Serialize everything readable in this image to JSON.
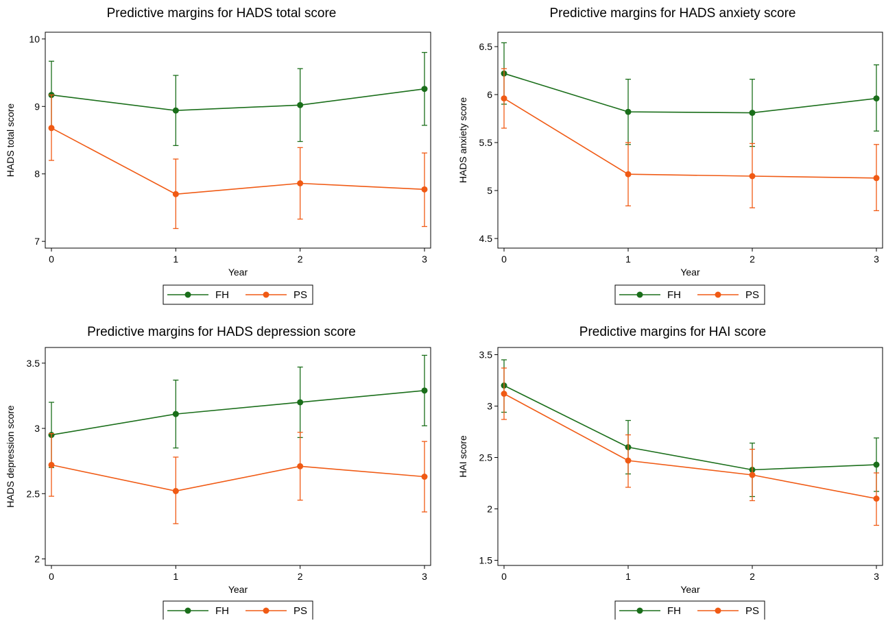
{
  "colors": {
    "FH": "#1a6e1a",
    "PS": "#f05a14"
  },
  "chart_data": [
    {
      "type": "line",
      "title": "Predictive margins for HADS total score",
      "xlabel": "Year",
      "ylabel": "HADS total score",
      "x": [
        0,
        1,
        2,
        3
      ],
      "xticks": [
        "0",
        "1",
        "2",
        "3"
      ],
      "ylim": [
        6.9,
        10.1
      ],
      "yticks": [
        7,
        8,
        9,
        10
      ],
      "yticklabels": [
        "7",
        "8",
        "9",
        "10"
      ],
      "legend": "bottom",
      "grid": false,
      "series": [
        {
          "name": "FH",
          "values": [
            9.17,
            8.94,
            9.02,
            9.26
          ],
          "lower": [
            8.67,
            8.42,
            8.48,
            8.72
          ],
          "upper": [
            9.67,
            9.46,
            9.56,
            9.8
          ]
        },
        {
          "name": "PS",
          "values": [
            8.68,
            7.7,
            7.86,
            7.77
          ],
          "lower": [
            8.2,
            7.19,
            7.33,
            7.22
          ],
          "upper": [
            9.17,
            8.22,
            8.39,
            8.31
          ]
        }
      ]
    },
    {
      "type": "line",
      "title": "Predictive margins for HADS anxiety score",
      "xlabel": "Year",
      "ylabel": "HADS anxiety score",
      "x": [
        0,
        1,
        2,
        3
      ],
      "xticks": [
        "0",
        "1",
        "2",
        "3"
      ],
      "ylim": [
        4.4,
        6.65
      ],
      "yticks": [
        4.5,
        5,
        5.5,
        6,
        6.5
      ],
      "yticklabels": [
        "4.5",
        "5",
        "5.5",
        "6",
        "6.5"
      ],
      "legend": "bottom",
      "grid": false,
      "series": [
        {
          "name": "FH",
          "values": [
            6.22,
            5.82,
            5.81,
            5.96
          ],
          "lower": [
            5.9,
            5.48,
            5.46,
            5.62
          ],
          "upper": [
            6.54,
            6.16,
            6.16,
            6.31
          ]
        },
        {
          "name": "PS",
          "values": [
            5.96,
            5.17,
            5.15,
            5.13
          ],
          "lower": [
            5.65,
            4.84,
            4.82,
            4.79
          ],
          "upper": [
            6.27,
            5.5,
            5.49,
            5.48
          ]
        }
      ]
    },
    {
      "type": "line",
      "title": "Predictive margins for HADS depression score",
      "xlabel": "Year",
      "ylabel": "HADS depression score",
      "x": [
        0,
        1,
        2,
        3
      ],
      "xticks": [
        "0",
        "1",
        "2",
        "3"
      ],
      "ylim": [
        1.95,
        3.62
      ],
      "yticks": [
        2,
        2.5,
        3,
        3.5
      ],
      "yticklabels": [
        "2",
        "2.5",
        "3",
        "3.5"
      ],
      "legend": "bottom",
      "grid": false,
      "series": [
        {
          "name": "FH",
          "values": [
            2.95,
            3.11,
            3.2,
            3.29
          ],
          "lower": [
            2.7,
            2.85,
            2.93,
            3.02
          ],
          "upper": [
            3.2,
            3.37,
            3.47,
            3.56
          ]
        },
        {
          "name": "PS",
          "values": [
            2.72,
            2.52,
            2.71,
            2.63
          ],
          "lower": [
            2.48,
            2.27,
            2.45,
            2.36
          ],
          "upper": [
            2.96,
            2.78,
            2.97,
            2.9
          ]
        }
      ]
    },
    {
      "type": "line",
      "title": "Predictive margins for HAI score",
      "xlabel": "Year",
      "ylabel": "HAI score",
      "x": [
        0,
        1,
        2,
        3
      ],
      "xticks": [
        "0",
        "1",
        "2",
        "3"
      ],
      "ylim": [
        1.45,
        3.57
      ],
      "yticks": [
        1.5,
        2,
        2.5,
        3,
        3.5
      ],
      "yticklabels": [
        "1.5",
        "2",
        "2.5",
        "3",
        "3.5"
      ],
      "legend": "bottom",
      "grid": false,
      "series": [
        {
          "name": "FH",
          "values": [
            3.2,
            2.6,
            2.38,
            2.43
          ],
          "lower": [
            2.94,
            2.34,
            2.12,
            2.17
          ],
          "upper": [
            3.45,
            2.86,
            2.64,
            2.69
          ]
        },
        {
          "name": "PS",
          "values": [
            3.12,
            2.47,
            2.33,
            2.1
          ],
          "lower": [
            2.87,
            2.21,
            2.08,
            1.84
          ],
          "upper": [
            3.37,
            2.72,
            2.58,
            2.35
          ]
        }
      ]
    }
  ]
}
